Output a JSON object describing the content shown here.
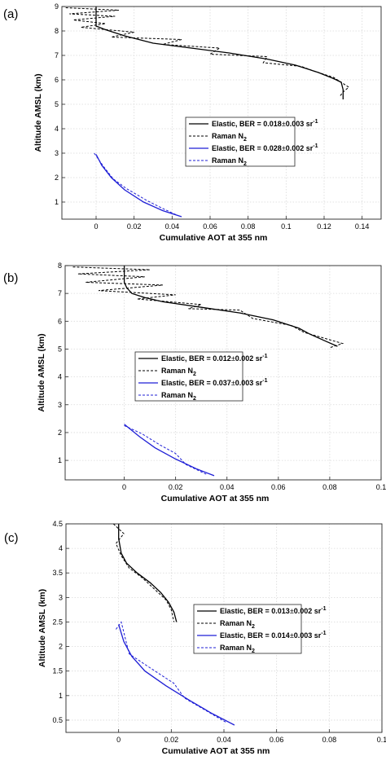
{
  "chart_data": [
    {
      "type": "line",
      "panel_label": "(a)",
      "xlabel": "Cumulative AOT at 355 nm",
      "ylabel": "Altitude AMSL (km)",
      "xlim": [
        -0.018,
        0.15
      ],
      "ylim": [
        0.3,
        9
      ],
      "xticks": [
        0,
        0.02,
        0.04,
        0.06,
        0.08,
        0.1,
        0.12,
        0.14
      ],
      "xtick_labels": [
        "0",
        "0.02",
        "0.04",
        "0.06",
        "0.08",
        "0.1",
        "0.12",
        "0.14"
      ],
      "yticks": [
        1,
        2,
        3,
        4,
        5,
        6,
        7,
        8,
        9
      ],
      "ytick_labels": [
        "1",
        "2",
        "3",
        "4",
        "5",
        "6",
        "7",
        "8",
        "9"
      ],
      "grid": true,
      "legend": {
        "placement": "center-right",
        "entries": [
          {
            "text": "Elastic, BER = 0.018",
            "pm": "±",
            "tail": "0.003 sr",
            "sup": "-1",
            "style": "solid",
            "color": "#000000"
          },
          {
            "text": "Raman N",
            "sub": "2",
            "style": "dashed",
            "color": "#000000"
          },
          {
            "text": "Elastic, BER = 0.028",
            "pm": "±",
            "tail": "0.002 sr",
            "sup": "-1",
            "style": "solid",
            "color": "#1f1fd6"
          },
          {
            "text": "Raman N",
            "sub": "2",
            "style": "dashed",
            "color": "#1f1fd6"
          }
        ]
      },
      "series": [
        {
          "name": "Elastic, BER = 0.018±0.003 sr-1",
          "style": "solid",
          "color": "#000000",
          "x": [
            0,
            0,
            0,
            0.005,
            0.015,
            0.03,
            0.05,
            0.07,
            0.09,
            0.105,
            0.117,
            0.125,
            0.129,
            0.13,
            0.13
          ],
          "y": [
            9,
            8.6,
            8.2,
            8.05,
            7.8,
            7.5,
            7.3,
            7.1,
            6.85,
            6.6,
            6.3,
            6.05,
            5.9,
            5.6,
            5.2
          ]
        },
        {
          "name": "Raman N2",
          "style": "dashed",
          "color": "#000000",
          "x": [
            -0.016,
            0.012,
            -0.014,
            0.01,
            -0.012,
            0.005,
            -0.008,
            0.02,
            0.008,
            0.045,
            0.035,
            0.065,
            0.06,
            0.09,
            0.088,
            0.108,
            0.115,
            0.125,
            0.128,
            0.133,
            0.13,
            0.128
          ],
          "y": [
            8.95,
            8.85,
            8.7,
            8.6,
            8.45,
            8.3,
            8.15,
            7.95,
            7.75,
            7.65,
            7.45,
            7.3,
            7.05,
            6.95,
            6.7,
            6.55,
            6.35,
            6.1,
            5.95,
            5.7,
            5.5,
            5.3
          ]
        },
        {
          "name": "Elastic, BER = 0.028±0.002 sr-1",
          "style": "solid",
          "color": "#1f1fd6",
          "x": [
            0,
            0.003,
            0.008,
            0.015,
            0.025,
            0.035,
            0.045
          ],
          "y": [
            2.95,
            2.5,
            2.0,
            1.5,
            1.0,
            0.65,
            0.4
          ]
        },
        {
          "name": "Raman N2",
          "style": "dashed",
          "color": "#1f1fd6",
          "x": [
            -0.001,
            0.004,
            0.009,
            0.016,
            0.027,
            0.036,
            0.043
          ],
          "y": [
            3.0,
            2.45,
            1.95,
            1.55,
            1.05,
            0.7,
            0.45
          ]
        }
      ]
    },
    {
      "type": "line",
      "panel_label": "(b)",
      "xlabel": "Cumulative AOT at 355 nm",
      "ylabel": "Altitude AMSL (km)",
      "xlim": [
        -0.023,
        0.1
      ],
      "ylim": [
        0.3,
        8
      ],
      "xticks": [
        0,
        0.02,
        0.04,
        0.06,
        0.08,
        0.1
      ],
      "xtick_labels": [
        "0",
        "0.02",
        "0.04",
        "0.06",
        "0.08",
        "0.1"
      ],
      "yticks": [
        1,
        2,
        3,
        4,
        5,
        6,
        7,
        8
      ],
      "ytick_labels": [
        "1",
        "2",
        "3",
        "4",
        "5",
        "6",
        "7",
        "8"
      ],
      "grid": true,
      "legend": {
        "placement": "center",
        "entries": [
          {
            "text": "Elastic, BER = 0.012",
            "pm": "±",
            "tail": "0.002 sr",
            "sup": "-1",
            "style": "solid",
            "color": "#000000"
          },
          {
            "text": "Raman N",
            "sub": "2",
            "style": "dashed",
            "color": "#000000"
          },
          {
            "text": "Elastic, BER = 0.037",
            "pm": "±",
            "tail": "0.003 sr",
            "sup": "-1",
            "style": "solid",
            "color": "#1f1fd6"
          },
          {
            "text": "Raman N",
            "sub": "2",
            "style": "dashed",
            "color": "#1f1fd6"
          }
        ]
      },
      "series": [
        {
          "name": "Elastic, BER = 0.012±0.002 sr-1",
          "style": "solid",
          "color": "#000000",
          "x": [
            0,
            0,
            0,
            0.001,
            0.003,
            0.008,
            0.015,
            0.03,
            0.045,
            0.058,
            0.068,
            0.072,
            0.078,
            0.083
          ],
          "y": [
            8,
            7.7,
            7.4,
            7.2,
            7.0,
            6.85,
            6.7,
            6.5,
            6.3,
            6.05,
            5.75,
            5.55,
            5.3,
            5.1
          ]
        },
        {
          "name": "Raman N2",
          "style": "dashed",
          "color": "#000000",
          "x": [
            -0.02,
            0.01,
            -0.018,
            0.008,
            -0.015,
            0.015,
            -0.01,
            0.02,
            0.005,
            0.03,
            0.025,
            0.045,
            0.05,
            0.065,
            0.07,
            0.085,
            0.08
          ],
          "y": [
            7.95,
            7.85,
            7.7,
            7.6,
            7.4,
            7.3,
            7.1,
            6.95,
            6.8,
            6.6,
            6.45,
            6.4,
            6.1,
            5.85,
            5.6,
            5.2,
            5.05
          ]
        },
        {
          "name": "Elastic, BER = 0.037±0.003 sr-1",
          "style": "solid",
          "color": "#1f1fd6",
          "x": [
            0,
            0.006,
            0.012,
            0.02,
            0.028,
            0.035
          ],
          "y": [
            2.3,
            1.85,
            1.45,
            1.05,
            0.7,
            0.45
          ]
        },
        {
          "name": "Raman N2",
          "style": "dashed",
          "color": "#1f1fd6",
          "x": [
            0,
            0.007,
            0.014,
            0.02,
            0.024,
            0.032
          ],
          "y": [
            2.25,
            1.95,
            1.55,
            1.25,
            0.85,
            0.5
          ]
        }
      ]
    },
    {
      "type": "line",
      "panel_label": "(c)",
      "xlabel": "Cumulative AOT at 355 nm",
      "ylabel": "Altitude AMSL (km)",
      "xlim": [
        -0.02,
        0.1
      ],
      "ylim": [
        0.25,
        4.5
      ],
      "xticks": [
        0,
        0.02,
        0.04,
        0.06,
        0.08,
        0.1
      ],
      "xtick_labels": [
        "0",
        "0.02",
        "0.04",
        "0.06",
        "0.08",
        "0.1"
      ],
      "yticks": [
        0.5,
        1,
        1.5,
        2,
        2.5,
        3,
        3.5,
        4,
        4.5
      ],
      "ytick_labels": [
        "0.5",
        "1",
        "1.5",
        "2",
        "2.5",
        "3",
        "3.5",
        "4",
        "4.5"
      ],
      "grid": true,
      "legend": {
        "placement": "right",
        "entries": [
          {
            "text": "Elastic, BER = 0.013",
            "pm": "±",
            "tail": "0.002 sr",
            "sup": "-1",
            "style": "solid",
            "color": "#000000"
          },
          {
            "text": "Raman N",
            "sub": "2",
            "style": "dashed",
            "color": "#000000"
          },
          {
            "text": "Elastic, BER = 0.014",
            "pm": "±",
            "tail": "0.003 sr",
            "sup": "-1",
            "style": "solid",
            "color": "#1f1fd6"
          },
          {
            "text": "Raman N",
            "sub": "2",
            "style": "dashed",
            "color": "#1f1fd6"
          }
        ]
      },
      "series": [
        {
          "name": "Elastic, BER = 0.013±0.002 sr-1",
          "style": "solid",
          "color": "#000000",
          "x": [
            0,
            0,
            0.001,
            0.003,
            0.007,
            0.012,
            0.016,
            0.019,
            0.021,
            0.022
          ],
          "y": [
            4.5,
            4.2,
            3.9,
            3.7,
            3.5,
            3.3,
            3.1,
            2.9,
            2.7,
            2.5
          ]
        },
        {
          "name": "Raman N2",
          "style": "dashed",
          "color": "#000000",
          "x": [
            -0.002,
            0.002,
            -0.001,
            0.001,
            0.004,
            0.009,
            0.014,
            0.018,
            0.02,
            0.021
          ],
          "y": [
            4.5,
            4.3,
            4.1,
            3.85,
            3.6,
            3.4,
            3.15,
            2.95,
            2.75,
            2.5
          ]
        },
        {
          "name": "Elastic, BER = 0.014±0.003 sr-1",
          "style": "solid",
          "color": "#1f1fd6",
          "x": [
            0,
            0.002,
            0.005,
            0.01,
            0.018,
            0.027,
            0.035,
            0.044
          ],
          "y": [
            2.45,
            2.1,
            1.8,
            1.5,
            1.2,
            0.9,
            0.65,
            0.4
          ]
        },
        {
          "name": "Raman N2",
          "style": "dashed",
          "color": "#1f1fd6",
          "x": [
            -0.001,
            0.001,
            0.004,
            0.011,
            0.021,
            0.025,
            0.033,
            0.041
          ],
          "y": [
            2.35,
            2.5,
            1.85,
            1.6,
            1.25,
            0.95,
            0.7,
            0.45
          ]
        }
      ]
    }
  ]
}
